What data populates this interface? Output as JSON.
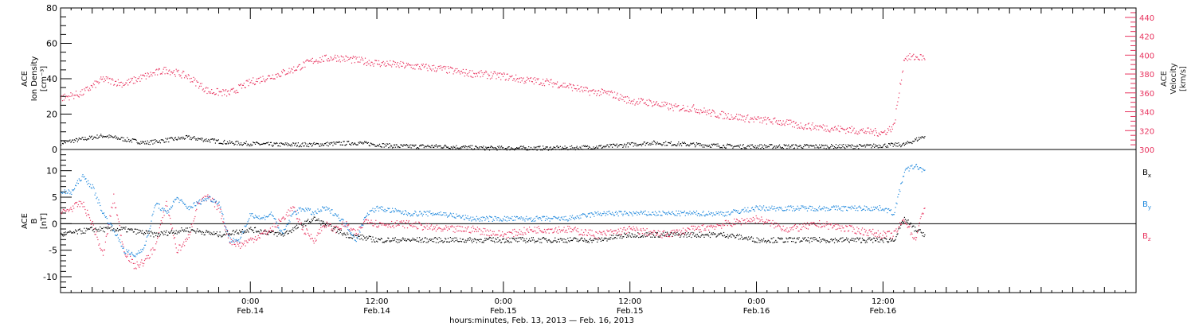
{
  "chart_data": [
    {
      "type": "scatter",
      "panel": "ion-density-velocity",
      "left_axis": {
        "label_lines": [
          "ACE",
          "Ion Density",
          "[cm⁻³]"
        ],
        "ylim": [
          0,
          80
        ],
        "ticks": [
          0,
          20,
          40,
          60,
          80
        ],
        "color": "#000000"
      },
      "right_axis": {
        "label_lines": [
          "ACE",
          "Velocity",
          "[km/s]"
        ],
        "ylim": [
          300,
          450
        ],
        "ticks": [
          300,
          320,
          340,
          360,
          380,
          400,
          420,
          440
        ],
        "color": "#e8345f"
      },
      "series": [
        {
          "axis": "left",
          "color": "#000000",
          "x": [
            0,
            4,
            8,
            12,
            16,
            20,
            24,
            28,
            32,
            36,
            40,
            44,
            48,
            52,
            56,
            60,
            64,
            68,
            72,
            76,
            80,
            82
          ],
          "values": [
            4,
            8,
            4,
            7,
            4,
            3,
            3,
            4,
            2,
            2,
            1,
            1,
            1,
            2,
            4,
            3,
            2,
            2,
            2,
            2,
            3,
            8
          ]
        },
        {
          "axis": "right",
          "color": "#e8345f",
          "x": [
            0,
            2,
            4,
            6,
            8,
            10,
            12,
            14,
            16,
            18,
            20,
            22,
            24,
            26,
            28,
            30,
            32,
            34,
            36,
            38,
            40,
            42,
            44,
            46,
            48,
            50,
            52,
            54,
            56,
            58,
            60,
            62,
            64,
            66,
            68,
            70,
            72,
            74,
            76,
            78,
            79,
            80,
            82
          ],
          "values": [
            355,
            360,
            375,
            370,
            378,
            385,
            378,
            362,
            360,
            372,
            378,
            385,
            395,
            398,
            395,
            392,
            390,
            388,
            386,
            382,
            380,
            378,
            374,
            372,
            368,
            362,
            360,
            352,
            350,
            345,
            344,
            338,
            335,
            332,
            330,
            326,
            324,
            322,
            320,
            318,
            325,
            398,
            398
          ]
        }
      ]
    },
    {
      "type": "scatter",
      "panel": "magnetic-field",
      "left_axis": {
        "label_lines": [
          "ACE",
          "B",
          "[nT]"
        ],
        "ylim": [
          -13,
          14
        ],
        "ticks": [
          -10,
          -5,
          0,
          5,
          10
        ],
        "zero_line": true
      },
      "series": [
        {
          "name": "B",
          "subscript": "x",
          "color": "#000000",
          "x": [
            0,
            3,
            6,
            9,
            12,
            15,
            18,
            21,
            24,
            27,
            30,
            33,
            36,
            39,
            42,
            45,
            48,
            51,
            54,
            57,
            60,
            63,
            66,
            69,
            72,
            75,
            78,
            79,
            80,
            81,
            82
          ],
          "values": [
            -2,
            -1,
            -1,
            -2,
            -1,
            -2,
            -1,
            -2,
            1,
            -2,
            -3,
            -3,
            -3,
            -3,
            -3,
            -3,
            -3,
            -3,
            -2,
            -2,
            -2,
            -2,
            -3,
            -3,
            -3,
            -3,
            -3,
            -3,
            1,
            -1,
            -2
          ]
        },
        {
          "name": "B",
          "subscript": "y",
          "color": "#1f88dd",
          "x": [
            0,
            1,
            2,
            3,
            4,
            5,
            6,
            7,
            8,
            9,
            10,
            11,
            12,
            13,
            14,
            15,
            16,
            17,
            18,
            19,
            20,
            21,
            22,
            23,
            24,
            25,
            26,
            27,
            28,
            29,
            30,
            33,
            36,
            39,
            42,
            45,
            48,
            51,
            54,
            57,
            60,
            63,
            66,
            69,
            72,
            75,
            78,
            79,
            80,
            81,
            82
          ],
          "values": [
            6,
            6,
            9,
            7,
            2,
            -1,
            -5,
            -6,
            -4,
            4,
            2,
            5,
            3,
            4,
            5,
            4,
            -3,
            -3,
            2,
            1,
            2,
            -2,
            2,
            3,
            2,
            3,
            2,
            0,
            -3,
            2,
            3,
            2,
            2,
            1,
            1,
            1,
            1,
            2,
            2,
            2,
            2,
            2,
            3,
            3,
            3,
            3,
            3,
            2,
            10,
            11,
            10
          ]
        },
        {
          "name": "B",
          "subscript": "z",
          "color": "#e8345f",
          "x": [
            0,
            1,
            2,
            3,
            4,
            5,
            6,
            7,
            8,
            9,
            10,
            11,
            12,
            13,
            14,
            15,
            16,
            17,
            18,
            19,
            20,
            21,
            22,
            23,
            24,
            25,
            26,
            27,
            28,
            29,
            30,
            33,
            36,
            39,
            42,
            45,
            48,
            51,
            54,
            57,
            60,
            63,
            66,
            69,
            72,
            75,
            78,
            79,
            80,
            81,
            82
          ],
          "values": [
            2,
            3,
            4,
            0,
            -6,
            5,
            -5,
            -8,
            -7,
            -4,
            4,
            -5,
            -3,
            4,
            5,
            3,
            -3,
            -4,
            -3,
            -2,
            -1,
            1,
            3,
            -1,
            -3,
            0,
            -1,
            0,
            -2,
            1,
            0,
            0,
            -1,
            -1,
            -2,
            -1,
            -1,
            -2,
            -1,
            -2,
            -1,
            0,
            1,
            -1,
            0,
            -1,
            -2,
            -2,
            1,
            -3,
            4
          ]
        }
      ]
    }
  ],
  "x_axis": {
    "start": "Feb. 13, 2013 06:00",
    "range_hours": [
      0,
      102
    ],
    "major_ticks": [
      {
        "hour": 18,
        "time": "0:00",
        "date": "Feb.14"
      },
      {
        "hour": 30,
        "time": "12:00",
        "date": "Feb.14"
      },
      {
        "hour": 42,
        "time": "0:00",
        "date": "Feb.15"
      },
      {
        "hour": 54,
        "time": "12:00",
        "date": "Feb.15"
      },
      {
        "hour": 66,
        "time": "0:00",
        "date": "Feb.16"
      },
      {
        "hour": 78,
        "time": "12:00",
        "date": "Feb.16"
      }
    ],
    "title": "hours:minutes, Feb. 13, 2013 — Feb. 16, 2013"
  }
}
